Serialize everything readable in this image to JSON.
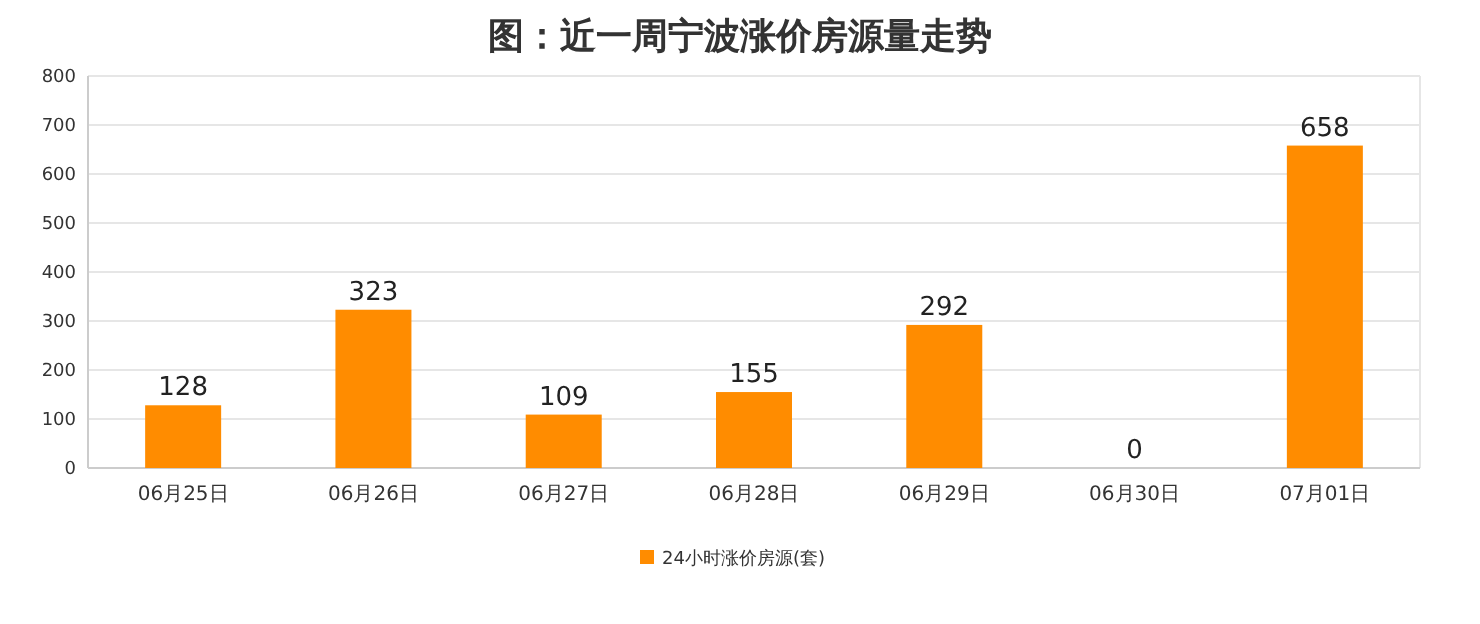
{
  "chart_data": {
    "type": "bar",
    "title": "图：近一周宁波涨价房源量走势",
    "categories": [
      "06月25日",
      "06月26日",
      "06月27日",
      "06月28日",
      "06月29日",
      "06月30日",
      "07月01日"
    ],
    "series": [
      {
        "name": "24小时涨价房源(套)",
        "color": "#ff8c00",
        "values": [
          128,
          323,
          109,
          155,
          292,
          0,
          658
        ]
      }
    ],
    "ylim": [
      0,
      800
    ],
    "yticks": [
      0,
      100,
      200,
      300,
      400,
      500,
      600,
      700,
      800
    ],
    "grid": "y",
    "legend": "bottom",
    "data_labels": true
  }
}
